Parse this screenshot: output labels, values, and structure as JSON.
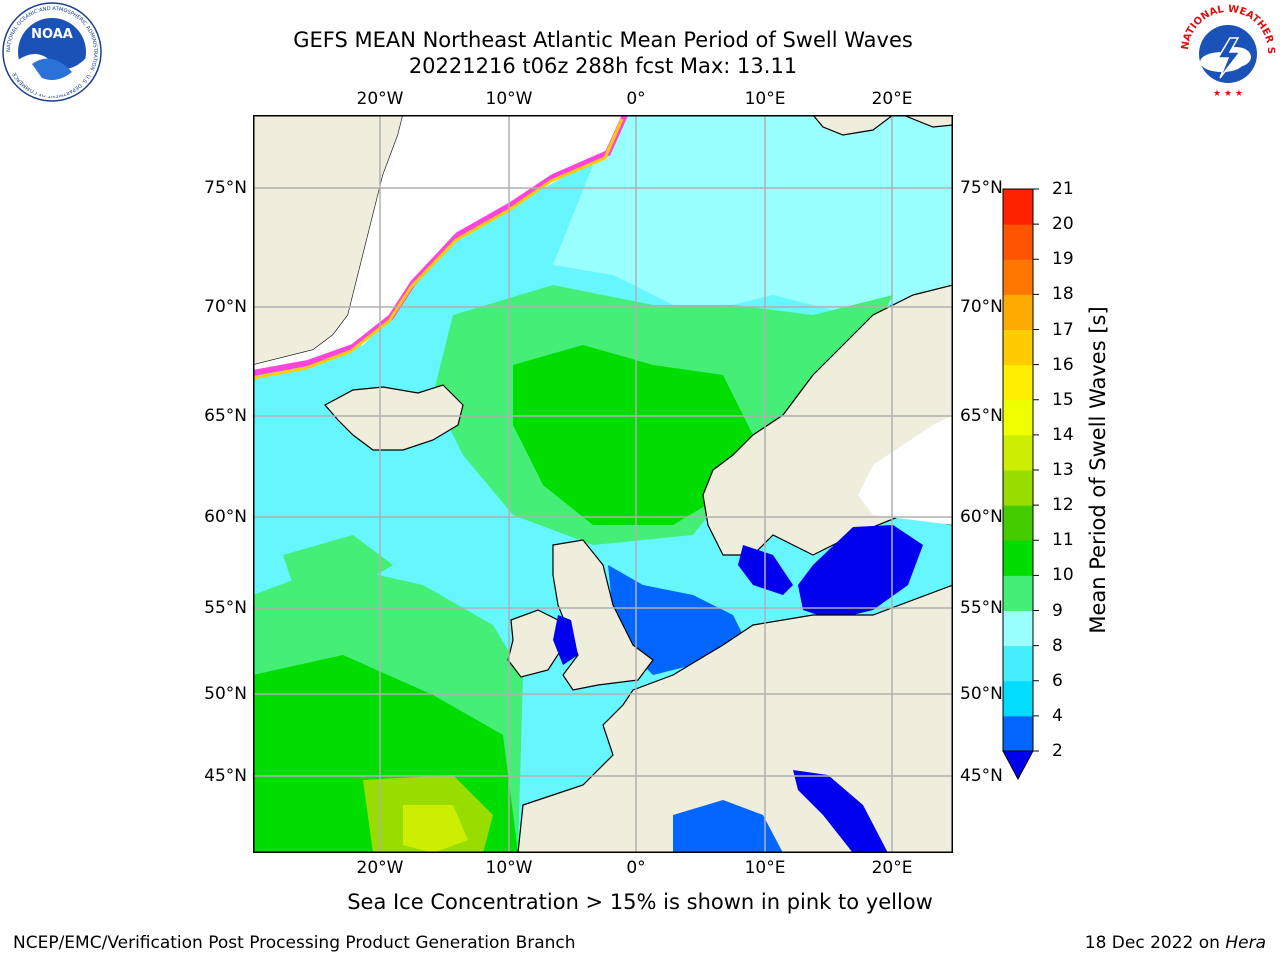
{
  "title_line1": "GEFS MEAN Northeast Atlantic Mean Period of Swell Waves",
  "title_line2": "20221216 t06z 288h fcst   Max: 13.11",
  "lon_labels": [
    "20°W",
    "10°W",
    "0°",
    "10°E",
    "20°E"
  ],
  "lat_labels": [
    "75°N",
    "70°N",
    "65°N",
    "60°N",
    "55°N",
    "50°N",
    "45°N"
  ],
  "colorbar": {
    "label": "Mean Period of Swell Waves [s]",
    "ticks": [
      "2",
      "4",
      "6",
      "8",
      "9",
      "10",
      "11",
      "12",
      "13",
      "14",
      "15",
      "16",
      "17",
      "18",
      "19",
      "20",
      "21"
    ],
    "colors": [
      "#0066ff",
      "#00ddff",
      "#44eeff",
      "#99ffff",
      "#44ee77",
      "#00dd00",
      "#44cc00",
      "#99dd00",
      "#ccee00",
      "#eeff00",
      "#ffee00",
      "#ffcc00",
      "#ffaa00",
      "#ff7700",
      "#ff5500",
      "#ff2200"
    ],
    "under_color": "#0000ee"
  },
  "caption": "Sea Ice Concentration > 15% is shown in pink to yellow",
  "footer_left": "NCEP/EMC/Verification Post Processing Product Generation Branch",
  "footer_date": "18 Dec 2022 on",
  "footer_host": "Hera",
  "logos": {
    "noaa_text": "NOAA",
    "noaa_ring": "NATIONAL OCEANIC AND ATMOSPHERIC ADMINISTRATION · U.S. DEPARTMENT OF COMMERCE",
    "nws_ring": "NATIONAL WEATHER SERVICE"
  },
  "colors": {
    "land": "#efeedc",
    "ocean_default": "#66f6ff",
    "ice": "#ff44dd",
    "grid": "#b0b0b0"
  }
}
